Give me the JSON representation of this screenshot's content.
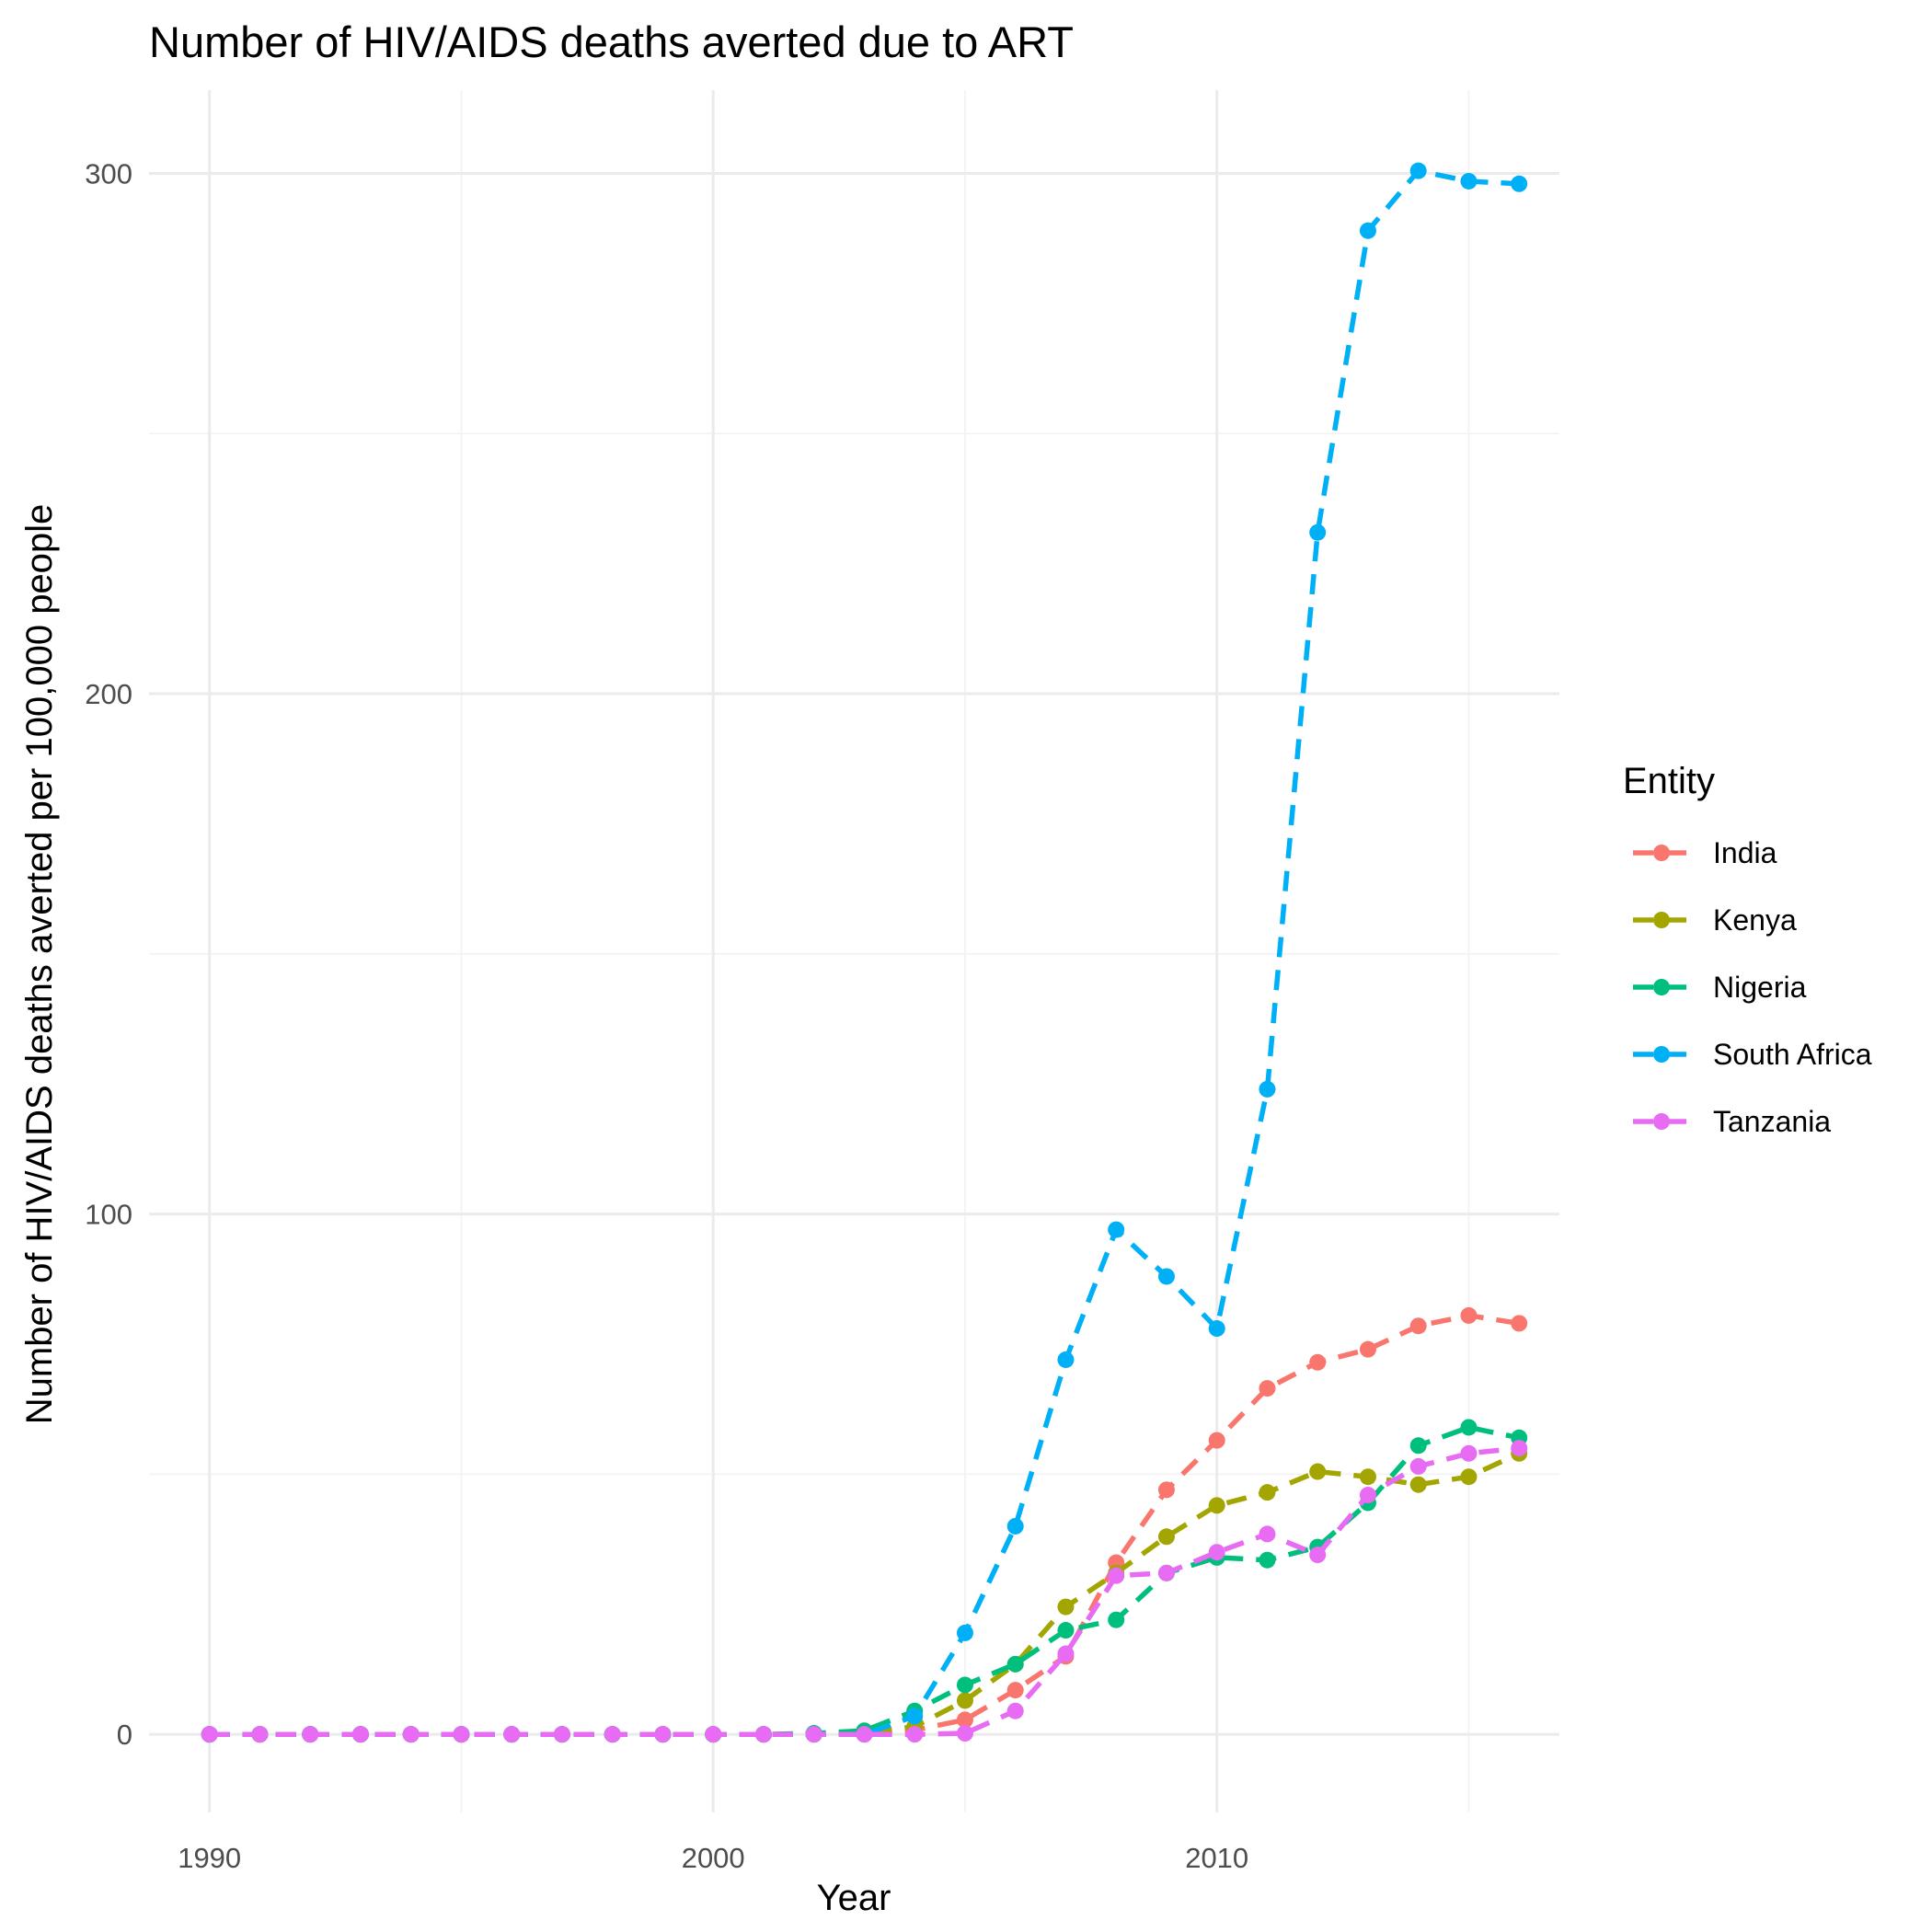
{
  "chart_data": {
    "type": "line",
    "title": "Number of HIV/AIDS deaths averted due to ART",
    "xlabel": "Year",
    "ylabel": "Number of HIV/AIDS deaths averted per 100,000 people",
    "xlim": [
      1988.8,
      2016.8
    ],
    "ylim": [
      -15,
      316
    ],
    "x_ticks": [
      1990,
      2000,
      2010
    ],
    "y_ticks": [
      0,
      100,
      200,
      300
    ],
    "x_minor": [
      1995,
      2005,
      2015
    ],
    "y_minor": [
      50,
      150,
      250
    ],
    "grid": true,
    "legend": {
      "title": "Entity",
      "position": "right"
    },
    "x": [
      1990,
      1991,
      1992,
      1993,
      1994,
      1995,
      1996,
      1997,
      1998,
      1999,
      2000,
      2001,
      2002,
      2003,
      2004,
      2005,
      2006,
      2007,
      2008,
      2009,
      2010,
      2011,
      2012,
      2013,
      2014,
      2015,
      2016
    ],
    "series": [
      {
        "name": "India",
        "color": "#F8766D",
        "values": [
          0,
          0,
          0,
          0,
          0,
          0,
          0,
          0,
          0,
          0,
          0,
          0,
          0,
          0.3,
          0.8,
          2.8,
          8.5,
          15,
          33,
          47,
          56.5,
          66.5,
          71.5,
          74,
          78.5,
          80.5,
          79
        ]
      },
      {
        "name": "Kenya",
        "color": "#A3A500",
        "values": [
          0,
          0,
          0,
          0,
          0,
          0,
          0,
          0,
          0,
          0,
          0,
          0,
          0,
          0.3,
          1.5,
          6.5,
          13.5,
          24.5,
          31,
          38,
          44,
          46.5,
          50.5,
          49.5,
          48,
          49.5,
          54
        ]
      },
      {
        "name": "Nigeria",
        "color": "#00BF7D",
        "values": [
          0,
          0,
          0,
          0,
          0,
          0,
          0,
          0,
          0,
          0,
          0,
          0,
          0.2,
          0.7,
          4.5,
          9.5,
          13.5,
          20,
          22,
          31,
          34,
          33.5,
          36,
          44.5,
          55.5,
          59,
          57
        ]
      },
      {
        "name": "South Africa",
        "color": "#00B0F6",
        "values": [
          0,
          0,
          0,
          0,
          0,
          0,
          0,
          0,
          0,
          0,
          0,
          0,
          0,
          0,
          3.5,
          19.5,
          40,
          72,
          97,
          88,
          78,
          124,
          231,
          289,
          300.5,
          298.5,
          298
        ]
      },
      {
        "name": "Tanzania",
        "color": "#E76BF3",
        "values": [
          0,
          0,
          0,
          0,
          0,
          0,
          0,
          0,
          0,
          0,
          0,
          0,
          0,
          0,
          0,
          0.2,
          4.5,
          15.5,
          30.5,
          31,
          35,
          38.5,
          34.5,
          46,
          51.5,
          54,
          55
        ]
      }
    ]
  }
}
